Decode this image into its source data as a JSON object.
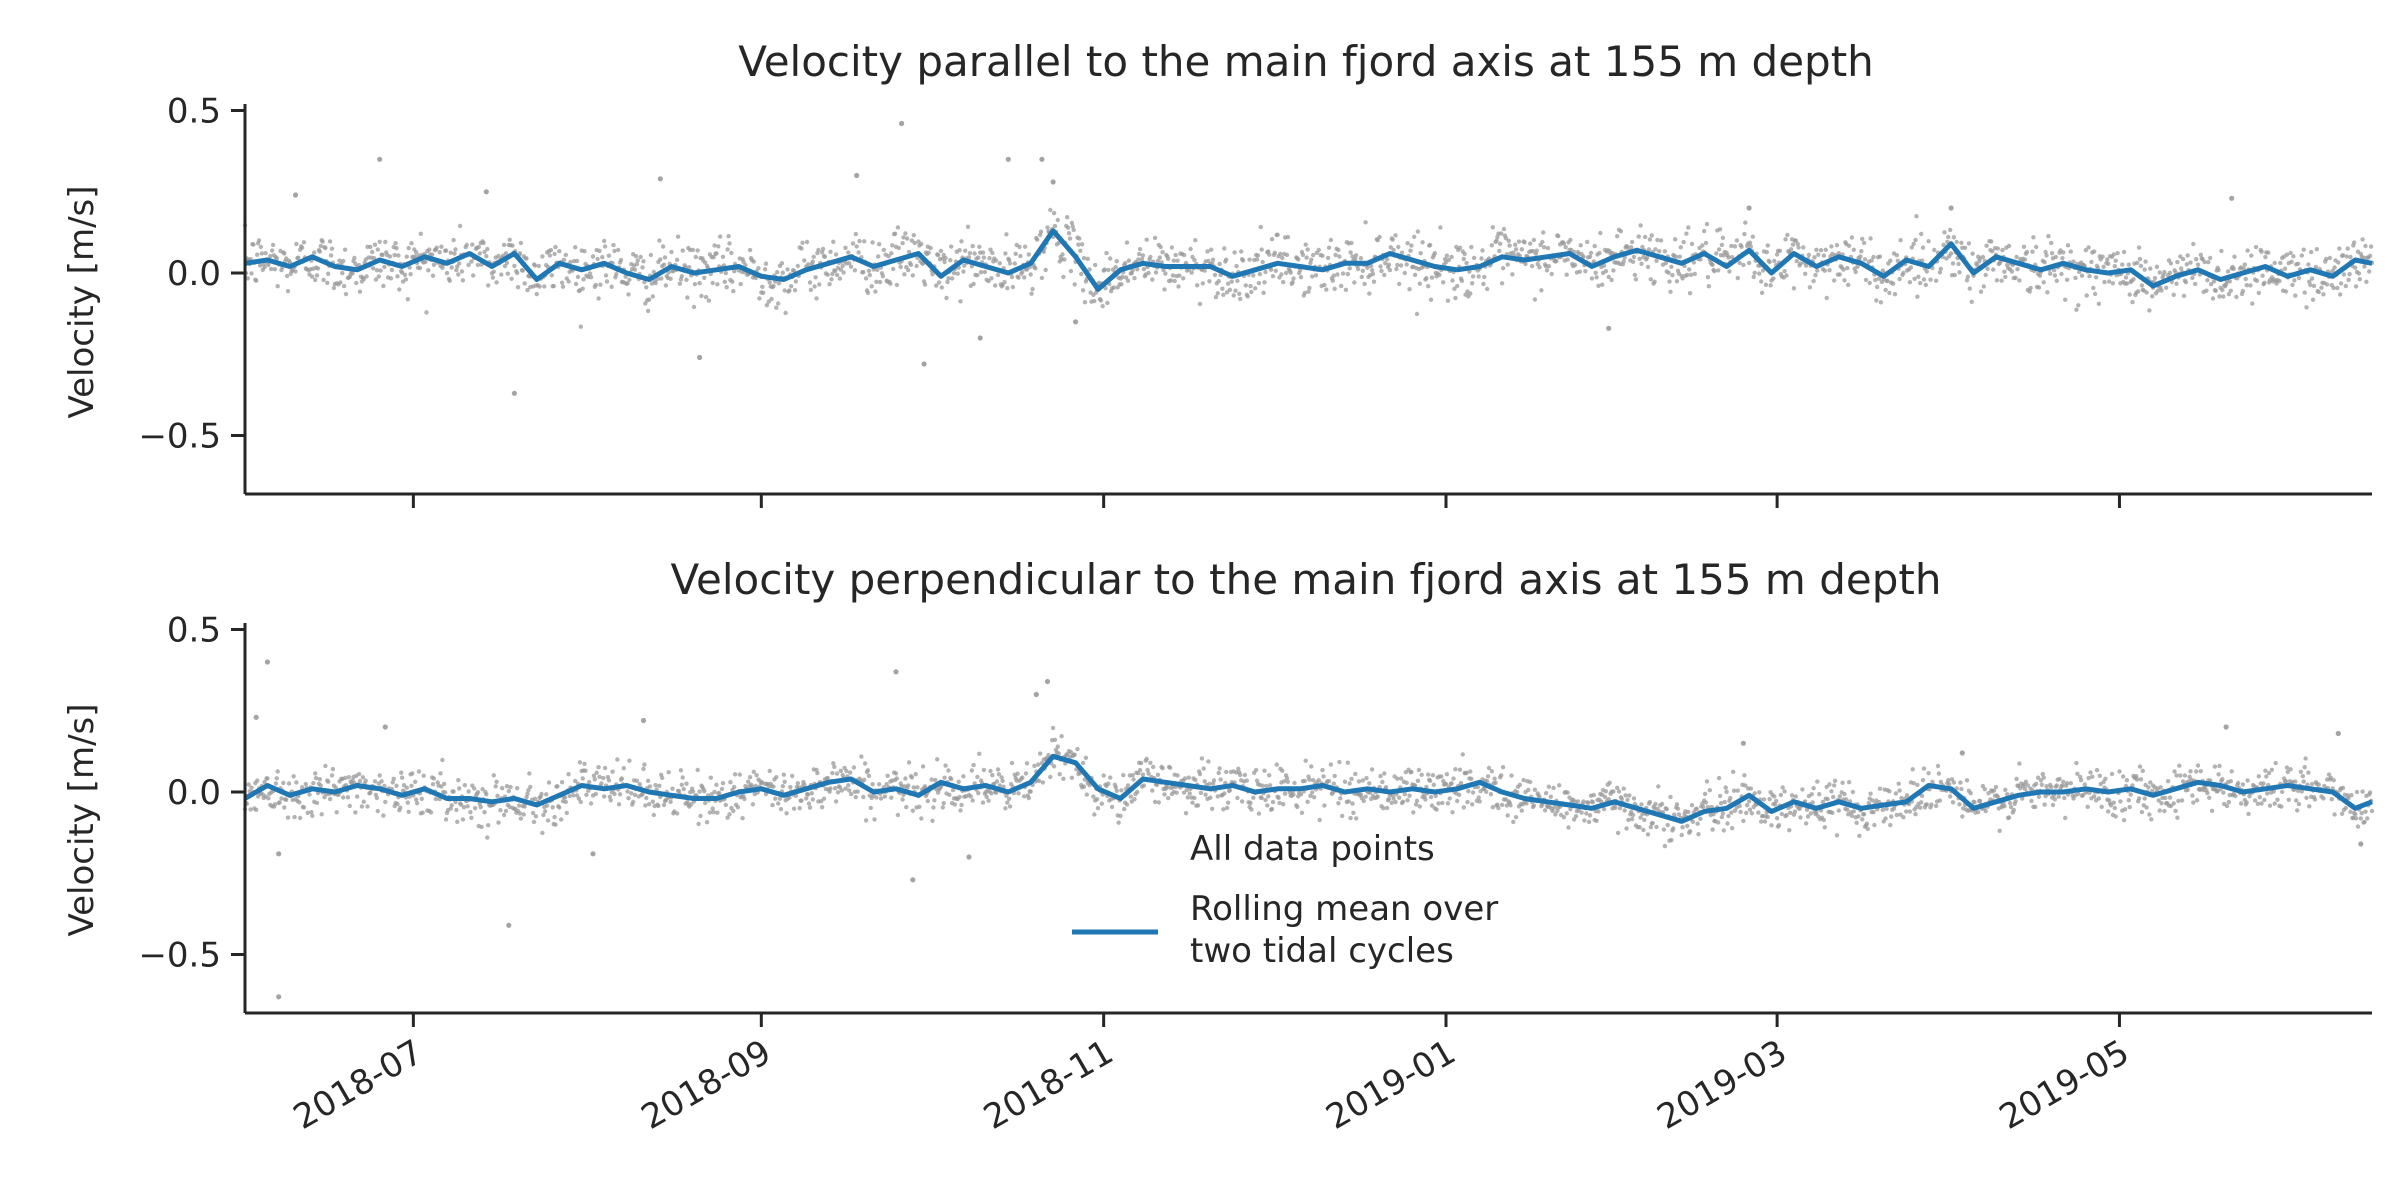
{
  "colors": {
    "rolling_mean": "#1f77b4",
    "all_points": "#9a9a9a",
    "axis": "#262626",
    "background": "#ffffff"
  },
  "legend": {
    "placement": "bottom-center of lower panel",
    "entries": [
      "All data points",
      "Rolling mean over\ntwo tidal cycles"
    ]
  },
  "chart_data": [
    {
      "type": "scatter+line",
      "title": "Velocity parallel to the main fjord axis at 155 m depth",
      "ylabel": "Velocity [m/s]",
      "xlabel": "",
      "xlim": [
        "2018-06-01",
        "2019-06-15"
      ],
      "ylim": [
        -0.68,
        0.52
      ],
      "yticks": [
        -0.5,
        0.0,
        0.5
      ],
      "ytick_labels": [
        "−0.5",
        "0.0",
        "0.5"
      ],
      "xticks": [
        "2018-07-01",
        "2018-09-01",
        "2018-11-01",
        "2019-01-01",
        "2019-03-01",
        "2019-05-01"
      ],
      "xtick_labels": [],
      "grid": false,
      "series": [
        {
          "name": "Rolling mean over two tidal cycles",
          "style": "line",
          "points": [
            [
              "2018-06-01",
              0.03
            ],
            [
              "2018-06-05",
              0.04
            ],
            [
              "2018-06-09",
              0.02
            ],
            [
              "2018-06-13",
              0.05
            ],
            [
              "2018-06-17",
              0.02
            ],
            [
              "2018-06-21",
              0.01
            ],
            [
              "2018-06-25",
              0.04
            ],
            [
              "2018-06-29",
              0.02
            ],
            [
              "2018-07-03",
              0.05
            ],
            [
              "2018-07-07",
              0.03
            ],
            [
              "2018-07-11",
              0.06
            ],
            [
              "2018-07-15",
              0.02
            ],
            [
              "2018-07-19",
              0.06
            ],
            [
              "2018-07-23",
              -0.02
            ],
            [
              "2018-07-27",
              0.03
            ],
            [
              "2018-07-31",
              0.01
            ],
            [
              "2018-08-04",
              0.03
            ],
            [
              "2018-08-08",
              0.0
            ],
            [
              "2018-08-12",
              -0.02
            ],
            [
              "2018-08-16",
              0.02
            ],
            [
              "2018-08-20",
              0.0
            ],
            [
              "2018-08-24",
              0.01
            ],
            [
              "2018-08-28",
              0.02
            ],
            [
              "2018-09-01",
              -0.01
            ],
            [
              "2018-09-05",
              -0.02
            ],
            [
              "2018-09-09",
              0.01
            ],
            [
              "2018-09-13",
              0.03
            ],
            [
              "2018-09-17",
              0.05
            ],
            [
              "2018-09-21",
              0.02
            ],
            [
              "2018-09-25",
              0.04
            ],
            [
              "2018-09-29",
              0.06
            ],
            [
              "2018-10-03",
              -0.01
            ],
            [
              "2018-10-07",
              0.04
            ],
            [
              "2018-10-11",
              0.02
            ],
            [
              "2018-10-15",
              0.0
            ],
            [
              "2018-10-19",
              0.03
            ],
            [
              "2018-10-23",
              0.13
            ],
            [
              "2018-10-27",
              0.05
            ],
            [
              "2018-10-31",
              -0.05
            ],
            [
              "2018-11-04",
              0.01
            ],
            [
              "2018-11-08",
              0.03
            ],
            [
              "2018-11-12",
              0.02
            ],
            [
              "2018-11-16",
              0.02
            ],
            [
              "2018-11-20",
              0.02
            ],
            [
              "2018-11-24",
              -0.01
            ],
            [
              "2018-11-28",
              0.01
            ],
            [
              "2018-12-02",
              0.03
            ],
            [
              "2018-12-06",
              0.02
            ],
            [
              "2018-12-10",
              0.01
            ],
            [
              "2018-12-14",
              0.03
            ],
            [
              "2018-12-18",
              0.03
            ],
            [
              "2018-12-22",
              0.06
            ],
            [
              "2018-12-26",
              0.04
            ],
            [
              "2018-12-30",
              0.02
            ],
            [
              "2019-01-03",
              0.01
            ],
            [
              "2019-01-07",
              0.02
            ],
            [
              "2019-01-11",
              0.05
            ],
            [
              "2019-01-15",
              0.04
            ],
            [
              "2019-01-19",
              0.05
            ],
            [
              "2019-01-23",
              0.06
            ],
            [
              "2019-01-27",
              0.02
            ],
            [
              "2019-01-31",
              0.05
            ],
            [
              "2019-02-04",
              0.07
            ],
            [
              "2019-02-08",
              0.05
            ],
            [
              "2019-02-12",
              0.03
            ],
            [
              "2019-02-16",
              0.06
            ],
            [
              "2019-02-20",
              0.02
            ],
            [
              "2019-02-24",
              0.07
            ],
            [
              "2019-02-28",
              0.0
            ],
            [
              "2019-03-04",
              0.06
            ],
            [
              "2019-03-08",
              0.02
            ],
            [
              "2019-03-12",
              0.05
            ],
            [
              "2019-03-16",
              0.03
            ],
            [
              "2019-03-20",
              -0.01
            ],
            [
              "2019-03-24",
              0.04
            ],
            [
              "2019-03-28",
              0.02
            ],
            [
              "2019-04-01",
              0.09
            ],
            [
              "2019-04-05",
              0.0
            ],
            [
              "2019-04-09",
              0.05
            ],
            [
              "2019-04-13",
              0.03
            ],
            [
              "2019-04-17",
              0.01
            ],
            [
              "2019-04-21",
              0.03
            ],
            [
              "2019-04-25",
              0.01
            ],
            [
              "2019-04-29",
              0.0
            ],
            [
              "2019-05-03",
              0.01
            ],
            [
              "2019-05-07",
              -0.04
            ],
            [
              "2019-05-11",
              -0.01
            ],
            [
              "2019-05-15",
              0.01
            ],
            [
              "2019-05-19",
              -0.02
            ],
            [
              "2019-05-23",
              0.0
            ],
            [
              "2019-05-27",
              0.02
            ],
            [
              "2019-05-31",
              -0.01
            ],
            [
              "2019-06-04",
              0.01
            ],
            [
              "2019-06-08",
              -0.01
            ],
            [
              "2019-06-12",
              0.04
            ],
            [
              "2019-06-15",
              0.03
            ]
          ]
        },
        {
          "name": "All data points",
          "style": "scatter",
          "baseline": "rolling mean",
          "typical_spread": 0.06,
          "outliers": [
            [
              "2018-06-10",
              0.24
            ],
            [
              "2018-06-25",
              0.35
            ],
            [
              "2018-07-14",
              0.25
            ],
            [
              "2018-07-19",
              -0.37
            ],
            [
              "2018-08-14",
              0.29
            ],
            [
              "2018-08-21",
              -0.26
            ],
            [
              "2018-09-18",
              0.3
            ],
            [
              "2018-09-26",
              0.46
            ],
            [
              "2018-09-30",
              -0.28
            ],
            [
              "2018-10-15",
              0.35
            ],
            [
              "2018-10-21",
              0.35
            ],
            [
              "2018-10-23",
              0.28
            ],
            [
              "2019-04-01",
              0.2
            ],
            [
              "2019-05-21",
              0.23
            ],
            [
              "2019-02-24",
              0.2
            ],
            [
              "2019-01-30",
              -0.17
            ],
            [
              "2018-10-27",
              -0.15
            ],
            [
              "2018-10-10",
              -0.2
            ]
          ]
        }
      ]
    },
    {
      "type": "scatter+line",
      "title": "Velocity perpendicular to the main fjord axis at 155 m depth",
      "ylabel": "Velocity [m/s]",
      "xlabel": "",
      "xlim": [
        "2018-06-01",
        "2019-06-15"
      ],
      "ylim": [
        -0.68,
        0.52
      ],
      "yticks": [
        -0.5,
        0.0,
        0.5
      ],
      "ytick_labels": [
        "−0.5",
        "0.0",
        "0.5"
      ],
      "xticks": [
        "2018-07-01",
        "2018-09-01",
        "2018-11-01",
        "2019-01-01",
        "2019-03-01",
        "2019-05-01"
      ],
      "xtick_labels": [
        "2018-07",
        "2018-09",
        "2018-11",
        "2019-01",
        "2019-03",
        "2019-05"
      ],
      "grid": false,
      "series": [
        {
          "name": "Rolling mean over two tidal cycles",
          "style": "line",
          "points": [
            [
              "2018-06-01",
              -0.02
            ],
            [
              "2018-06-05",
              0.02
            ],
            [
              "2018-06-09",
              -0.01
            ],
            [
              "2018-06-13",
              0.01
            ],
            [
              "2018-06-17",
              0.0
            ],
            [
              "2018-06-21",
              0.02
            ],
            [
              "2018-06-25",
              0.01
            ],
            [
              "2018-06-29",
              -0.01
            ],
            [
              "2018-07-03",
              0.01
            ],
            [
              "2018-07-07",
              -0.02
            ],
            [
              "2018-07-11",
              -0.02
            ],
            [
              "2018-07-15",
              -0.03
            ],
            [
              "2018-07-19",
              -0.02
            ],
            [
              "2018-07-23",
              -0.04
            ],
            [
              "2018-07-27",
              -0.01
            ],
            [
              "2018-07-31",
              0.02
            ],
            [
              "2018-08-04",
              0.01
            ],
            [
              "2018-08-08",
              0.02
            ],
            [
              "2018-08-12",
              0.0
            ],
            [
              "2018-08-16",
              -0.01
            ],
            [
              "2018-08-20",
              -0.02
            ],
            [
              "2018-08-24",
              -0.02
            ],
            [
              "2018-08-28",
              0.0
            ],
            [
              "2018-09-01",
              0.01
            ],
            [
              "2018-09-05",
              -0.01
            ],
            [
              "2018-09-09",
              0.01
            ],
            [
              "2018-09-13",
              0.03
            ],
            [
              "2018-09-17",
              0.04
            ],
            [
              "2018-09-21",
              0.0
            ],
            [
              "2018-09-25",
              0.01
            ],
            [
              "2018-09-29",
              -0.01
            ],
            [
              "2018-10-03",
              0.03
            ],
            [
              "2018-10-07",
              0.01
            ],
            [
              "2018-10-11",
              0.02
            ],
            [
              "2018-10-15",
              0.0
            ],
            [
              "2018-10-19",
              0.03
            ],
            [
              "2018-10-23",
              0.11
            ],
            [
              "2018-10-27",
              0.09
            ],
            [
              "2018-10-31",
              0.01
            ],
            [
              "2018-11-04",
              -0.02
            ],
            [
              "2018-11-08",
              0.04
            ],
            [
              "2018-11-12",
              0.03
            ],
            [
              "2018-11-16",
              0.02
            ],
            [
              "2018-11-20",
              0.01
            ],
            [
              "2018-11-24",
              0.02
            ],
            [
              "2018-11-28",
              0.0
            ],
            [
              "2018-12-02",
              0.01
            ],
            [
              "2018-12-06",
              0.01
            ],
            [
              "2018-12-10",
              0.02
            ],
            [
              "2018-12-14",
              0.0
            ],
            [
              "2018-12-18",
              0.01
            ],
            [
              "2018-12-22",
              0.0
            ],
            [
              "2018-12-26",
              0.01
            ],
            [
              "2018-12-30",
              0.0
            ],
            [
              "2019-01-03",
              0.01
            ],
            [
              "2019-01-07",
              0.03
            ],
            [
              "2019-01-11",
              0.0
            ],
            [
              "2019-01-15",
              -0.02
            ],
            [
              "2019-01-19",
              -0.03
            ],
            [
              "2019-01-23",
              -0.04
            ],
            [
              "2019-01-27",
              -0.05
            ],
            [
              "2019-01-31",
              -0.03
            ],
            [
              "2019-02-04",
              -0.05
            ],
            [
              "2019-02-08",
              -0.07
            ],
            [
              "2019-02-12",
              -0.09
            ],
            [
              "2019-02-16",
              -0.06
            ],
            [
              "2019-02-20",
              -0.05
            ],
            [
              "2019-02-24",
              -0.01
            ],
            [
              "2019-02-28",
              -0.06
            ],
            [
              "2019-03-04",
              -0.03
            ],
            [
              "2019-03-08",
              -0.05
            ],
            [
              "2019-03-12",
              -0.03
            ],
            [
              "2019-03-16",
              -0.05
            ],
            [
              "2019-03-20",
              -0.04
            ],
            [
              "2019-03-24",
              -0.03
            ],
            [
              "2019-03-28",
              0.02
            ],
            [
              "2019-04-01",
              0.01
            ],
            [
              "2019-04-05",
              -0.05
            ],
            [
              "2019-04-09",
              -0.03
            ],
            [
              "2019-04-13",
              -0.01
            ],
            [
              "2019-04-17",
              0.0
            ],
            [
              "2019-04-21",
              0.0
            ],
            [
              "2019-04-25",
              0.01
            ],
            [
              "2019-04-29",
              0.0
            ],
            [
              "2019-05-03",
              0.01
            ],
            [
              "2019-05-07",
              -0.01
            ],
            [
              "2019-05-11",
              0.01
            ],
            [
              "2019-05-15",
              0.03
            ],
            [
              "2019-05-19",
              0.02
            ],
            [
              "2019-05-23",
              0.0
            ],
            [
              "2019-05-27",
              0.01
            ],
            [
              "2019-05-31",
              0.02
            ],
            [
              "2019-06-04",
              0.01
            ],
            [
              "2019-06-08",
              0.0
            ],
            [
              "2019-06-12",
              -0.05
            ],
            [
              "2019-06-15",
              -0.03
            ]
          ]
        },
        {
          "name": "All data points",
          "style": "scatter",
          "baseline": "rolling mean",
          "typical_spread": 0.05,
          "outliers": [
            [
              "2018-06-03",
              0.23
            ],
            [
              "2018-06-05",
              0.4
            ],
            [
              "2018-06-07",
              -0.63
            ],
            [
              "2018-06-07",
              -0.19
            ],
            [
              "2018-06-26",
              0.2
            ],
            [
              "2018-07-18",
              -0.41
            ],
            [
              "2018-08-11",
              0.22
            ],
            [
              "2018-08-02",
              -0.19
            ],
            [
              "2018-09-25",
              0.37
            ],
            [
              "2018-09-28",
              -0.27
            ],
            [
              "2018-10-20",
              0.3
            ],
            [
              "2018-10-22",
              0.34
            ],
            [
              "2018-10-08",
              -0.2
            ],
            [
              "2019-02-23",
              0.15
            ],
            [
              "2019-04-03",
              0.12
            ],
            [
              "2019-06-09",
              0.18
            ],
            [
              "2019-05-20",
              0.2
            ],
            [
              "2019-06-13",
              -0.16
            ]
          ]
        }
      ]
    }
  ]
}
